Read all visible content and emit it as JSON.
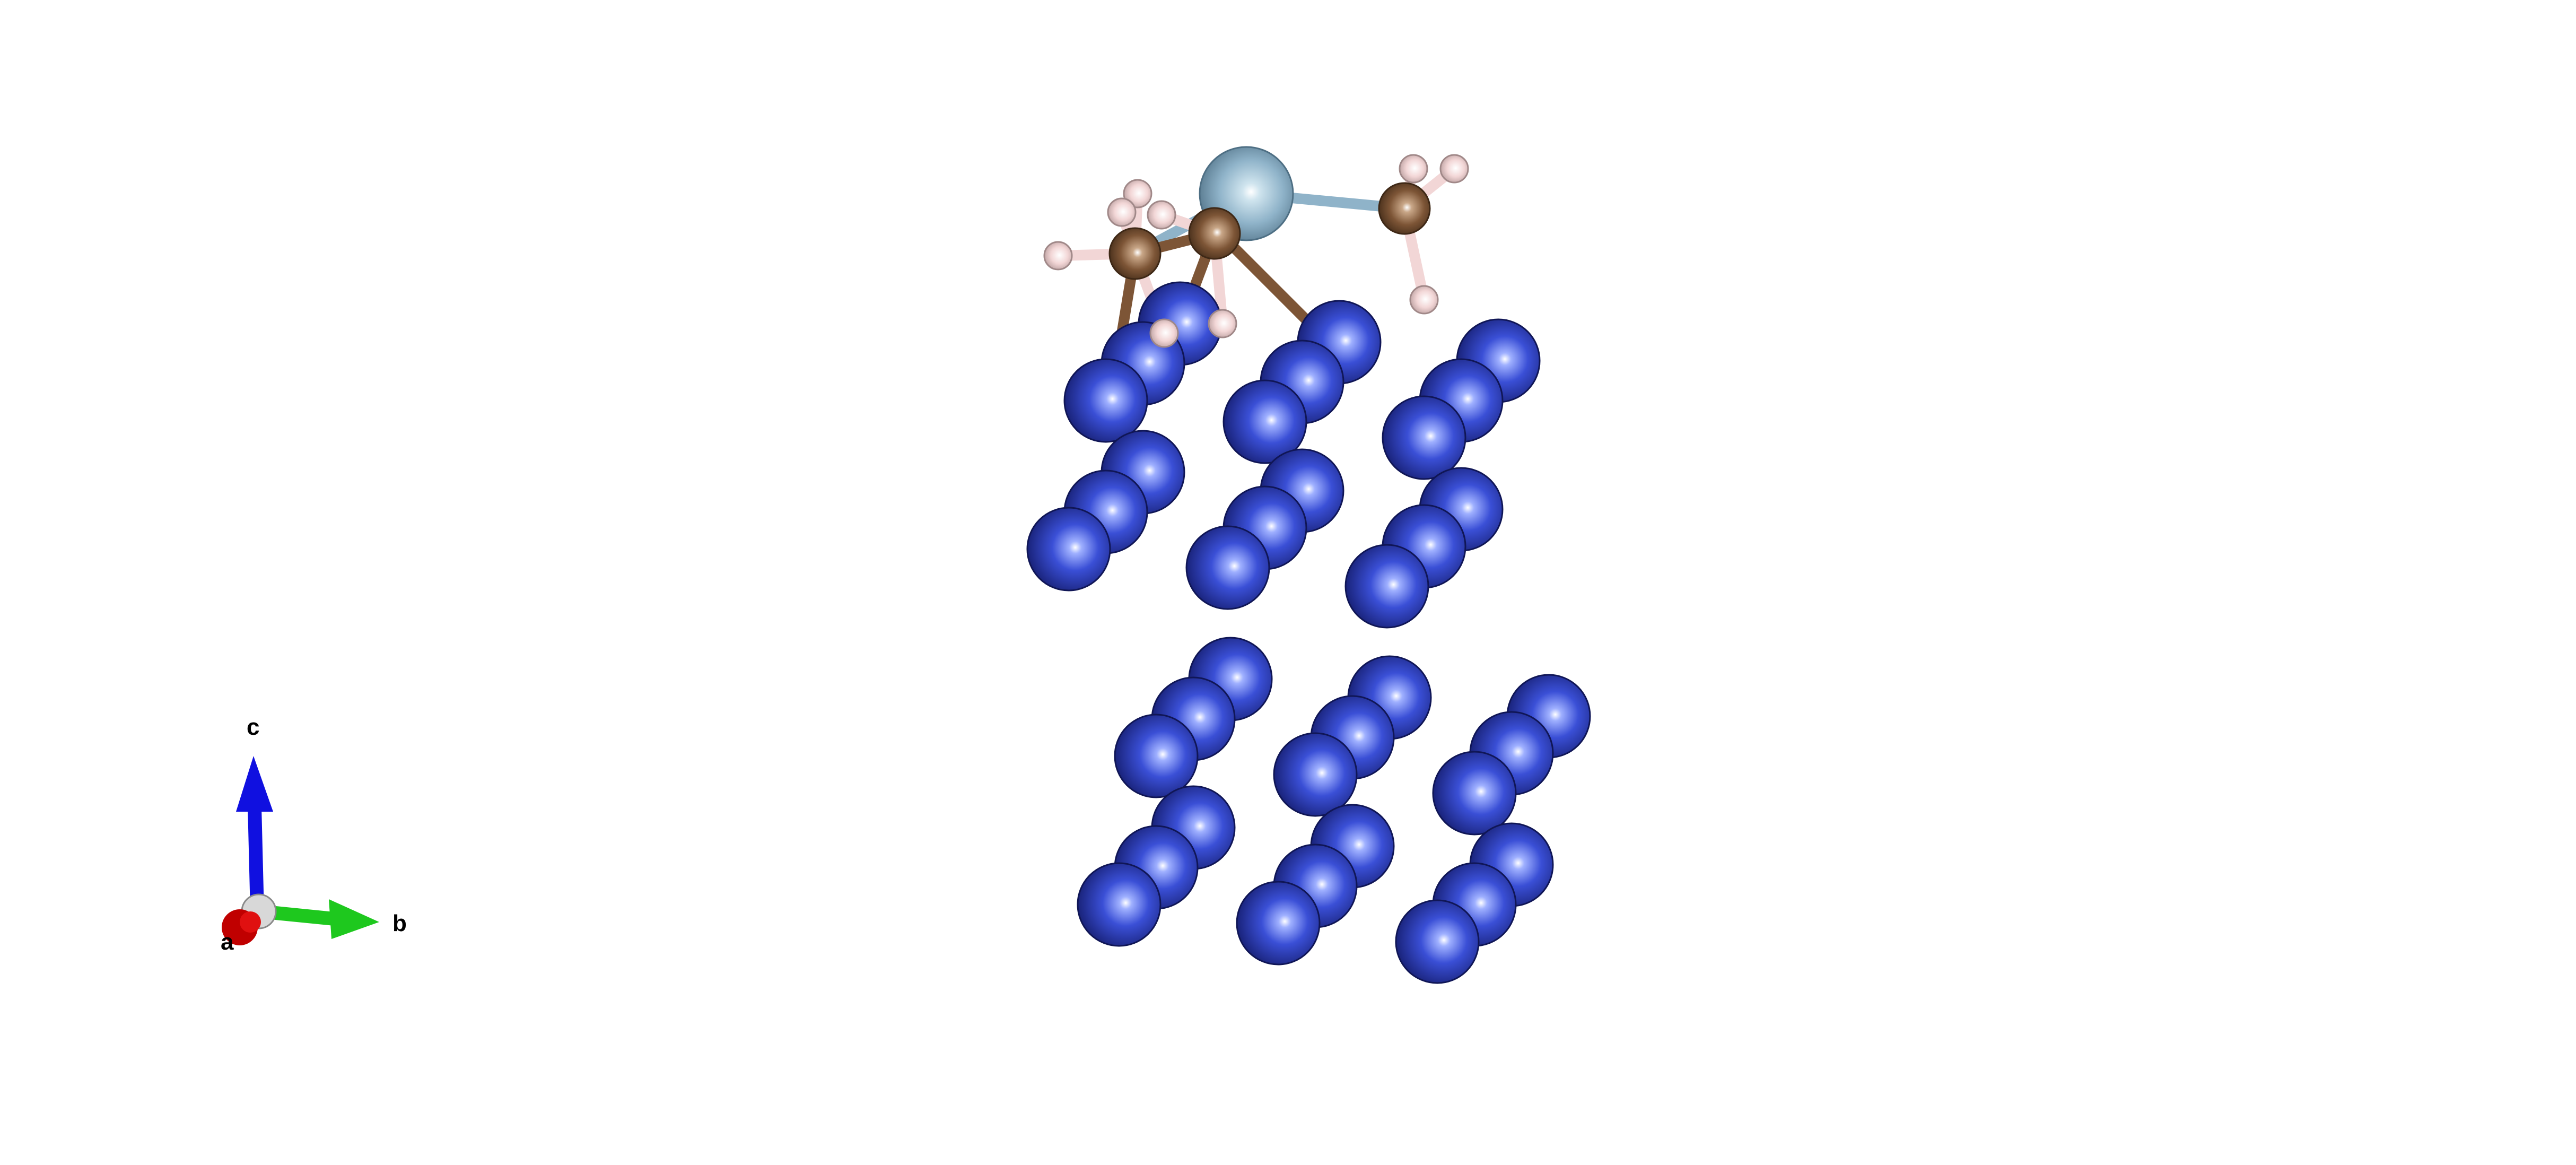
{
  "viewer": {
    "background": "#ffffff"
  },
  "elements": {
    "metal_substrate": {
      "color": "#3346c8"
    },
    "central_atom": {
      "color": "#8fb3c9"
    },
    "carbon": {
      "color": "#7d5536"
    },
    "hydrogen": {
      "color": "#f2d6d6"
    }
  },
  "axes": {
    "a": {
      "label": "a",
      "color": "#c00000",
      "icon": "axis-a-arrow"
    },
    "b": {
      "label": "b",
      "color": "#1ec81e",
      "icon": "axis-b-arrow"
    },
    "c": {
      "label": "c",
      "color": "#1010e0",
      "icon": "axis-c-arrow"
    }
  }
}
